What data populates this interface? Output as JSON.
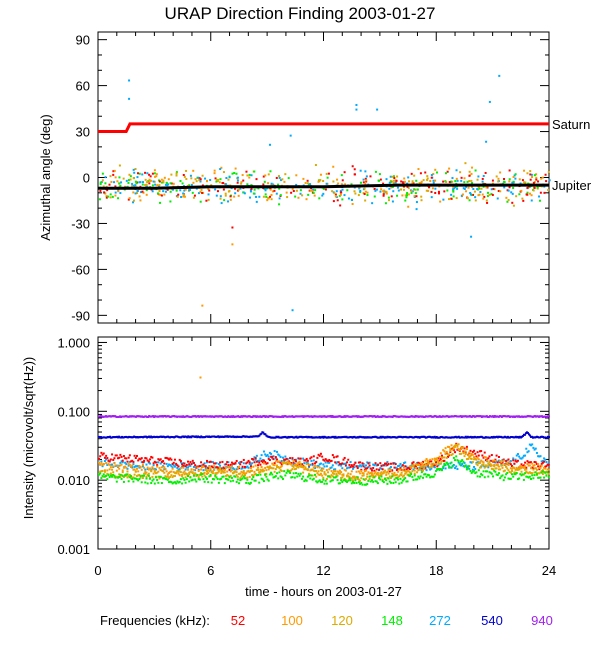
{
  "chart_data": [
    {
      "type": "scatter",
      "title": "URAP Direction Finding  2003-01-27",
      "ylabel": "Azimuthal angle (deg)",
      "xlabel": "",
      "xlim": [
        0,
        24
      ],
      "ylim": [
        -95,
        95
      ],
      "x_ticks": [
        0,
        6,
        12,
        18,
        24
      ],
      "y_ticks": [
        90,
        60,
        30,
        0,
        -30,
        -60,
        -90
      ],
      "y_tick_labels": [
        "90",
        "60",
        "30",
        "0",
        "-30",
        "-60",
        "-90"
      ],
      "reference_lines": [
        {
          "name": "Saturn",
          "color": "#ff0000",
          "points": [
            [
              0,
              30
            ],
            [
              1.5,
              30
            ],
            [
              1.7,
              35
            ],
            [
              24,
              35
            ]
          ]
        },
        {
          "name": "Jupiter",
          "color": "#000000",
          "points": [
            [
              0,
              -7
            ],
            [
              3,
              -7
            ],
            [
              6,
              -6
            ],
            [
              12,
              -6
            ],
            [
              16,
              -5
            ],
            [
              24,
              -5
            ]
          ]
        }
      ],
      "series_center_deg": -5,
      "series_spread_deg": 5,
      "outliers": [
        {
          "freq": "272",
          "x": 1.6,
          "y": 64
        },
        {
          "freq": "272",
          "x": 1.6,
          "y": 52
        },
        {
          "freq": "272",
          "x": 13.7,
          "y": 48
        },
        {
          "freq": "272",
          "x": 13.7,
          "y": 45
        },
        {
          "freq": "272",
          "x": 14.8,
          "y": 45
        },
        {
          "freq": "272",
          "x": 21.3,
          "y": 67
        },
        {
          "freq": "272",
          "x": 20.8,
          "y": 50
        },
        {
          "freq": "272",
          "x": 10.2,
          "y": 28
        },
        {
          "freq": "272",
          "x": 16.9,
          "y": -20
        },
        {
          "freq": "272",
          "x": 19.8,
          "y": -38
        },
        {
          "freq": "272",
          "x": 10.3,
          "y": -86
        },
        {
          "freq": "272",
          "x": 9.1,
          "y": 22
        },
        {
          "freq": "272",
          "x": 20.6,
          "y": 24
        },
        {
          "freq": "100",
          "x": 5.5,
          "y": -83
        },
        {
          "freq": "100",
          "x": 7.1,
          "y": -43
        },
        {
          "freq": "52",
          "x": 7.1,
          "y": -32
        },
        {
          "freq": "148",
          "x": 3.8,
          "y": -15
        },
        {
          "freq": "52",
          "x": 13.5,
          "y": 8
        },
        {
          "freq": "148",
          "x": 8.9,
          "y": -12
        },
        {
          "freq": "120",
          "x": 19.5,
          "y": 10
        }
      ],
      "annotations": [
        "Saturn",
        "Jupiter"
      ]
    },
    {
      "type": "scatter",
      "title": "",
      "ylabel": "Intensity (microvolt/sqrt(Hz))",
      "xlabel": "time - hours on 2003-01-27",
      "xlim": [
        0,
        24
      ],
      "yscale": "log",
      "ylim": [
        0.001,
        1.2
      ],
      "x_ticks": [
        0,
        6,
        12,
        18,
        24
      ],
      "x_tick_labels": [
        "0",
        "6",
        "12",
        "18",
        "24"
      ],
      "y_ticks": [
        1.0,
        0.1,
        0.01,
        0.001
      ],
      "y_tick_labels": [
        "1.000",
        "0.100",
        "0.010",
        "0.001"
      ],
      "series": [
        {
          "name": "940",
          "color": "#a020f0",
          "knots": [
            [
              0,
              0.084
            ],
            [
              6,
              0.084
            ],
            [
              12,
              0.084
            ],
            [
              18,
              0.084
            ],
            [
              24,
              0.084
            ]
          ]
        },
        {
          "name": "540",
          "color": "#0000cc",
          "knots": [
            [
              0,
              0.042
            ],
            [
              8.5,
              0.043
            ],
            [
              8.7,
              0.05
            ],
            [
              9,
              0.042
            ],
            [
              22.5,
              0.042
            ],
            [
              22.8,
              0.05
            ],
            [
              23,
              0.042
            ],
            [
              24,
              0.042
            ]
          ]
        },
        {
          "name": "272",
          "color": "#00aaff",
          "knots": [
            [
              0,
              0.018
            ],
            [
              1,
              0.017
            ],
            [
              2,
              0.016
            ],
            [
              5,
              0.016
            ],
            [
              7,
              0.016
            ],
            [
              8,
              0.017
            ],
            [
              9,
              0.025
            ],
            [
              10,
              0.02
            ],
            [
              12,
              0.016
            ],
            [
              16,
              0.016
            ],
            [
              18,
              0.016
            ],
            [
              20,
              0.016
            ],
            [
              22,
              0.018
            ],
            [
              23,
              0.03
            ],
            [
              24,
              0.016
            ]
          ]
        },
        {
          "name": "52",
          "color": "#ff0000",
          "knots": [
            [
              0,
              0.022
            ],
            [
              1,
              0.021
            ],
            [
              3,
              0.019
            ],
            [
              5,
              0.017
            ],
            [
              7,
              0.016
            ],
            [
              9,
              0.02
            ],
            [
              11,
              0.018
            ],
            [
              12,
              0.022
            ],
            [
              14,
              0.016
            ],
            [
              16,
              0.015
            ],
            [
              18,
              0.018
            ],
            [
              19,
              0.03
            ],
            [
              20,
              0.025
            ],
            [
              22,
              0.017
            ],
            [
              24,
              0.016
            ]
          ]
        },
        {
          "name": "100",
          "color": "#ff9900",
          "knots": [
            [
              0,
              0.016
            ],
            [
              2,
              0.015
            ],
            [
              4,
              0.013
            ],
            [
              6,
              0.014
            ],
            [
              8,
              0.014
            ],
            [
              10,
              0.018
            ],
            [
              12,
              0.013
            ],
            [
              14,
              0.012
            ],
            [
              16,
              0.013
            ],
            [
              18,
              0.02
            ],
            [
              19,
              0.035
            ],
            [
              20,
              0.02
            ],
            [
              22,
              0.016
            ],
            [
              24,
              0.015
            ]
          ]
        },
        {
          "name": "120",
          "color": "#ddaa00",
          "knots": [
            [
              0,
              0.013
            ],
            [
              2,
              0.012
            ],
            [
              4,
              0.012
            ],
            [
              6,
              0.013
            ],
            [
              8,
              0.012
            ],
            [
              10,
              0.016
            ],
            [
              12,
              0.012
            ],
            [
              14,
              0.011
            ],
            [
              16,
              0.012
            ],
            [
              18,
              0.018
            ],
            [
              19,
              0.03
            ],
            [
              20,
              0.018
            ],
            [
              22,
              0.014
            ],
            [
              24,
              0.013
            ]
          ]
        },
        {
          "name": "148",
          "color": "#00ee00",
          "knots": [
            [
              0,
              0.011
            ],
            [
              2,
              0.0105
            ],
            [
              4,
              0.0095
            ],
            [
              5,
              0.011
            ],
            [
              6,
              0.0105
            ],
            [
              8,
              0.01
            ],
            [
              10,
              0.012
            ],
            [
              12,
              0.01
            ],
            [
              14,
              0.0098
            ],
            [
              16,
              0.01
            ],
            [
              18,
              0.013
            ],
            [
              19,
              0.02
            ],
            [
              20,
              0.013
            ],
            [
              22,
              0.011
            ],
            [
              24,
              0.012
            ]
          ]
        }
      ],
      "isolated_points": [
        {
          "freq": "100",
          "x": 5.4,
          "y": 0.32
        }
      ]
    }
  ],
  "legend": {
    "label": "Frequencies (kHz):",
    "items": [
      {
        "text": "52",
        "color": "#ff0000"
      },
      {
        "text": "100",
        "color": "#ff9900"
      },
      {
        "text": "120",
        "color": "#ddaa00"
      },
      {
        "text": "148",
        "color": "#00ee00"
      },
      {
        "text": "272",
        "color": "#00aaff"
      },
      {
        "text": "540",
        "color": "#0000cc"
      },
      {
        "text": "940",
        "color": "#a020f0"
      }
    ]
  }
}
